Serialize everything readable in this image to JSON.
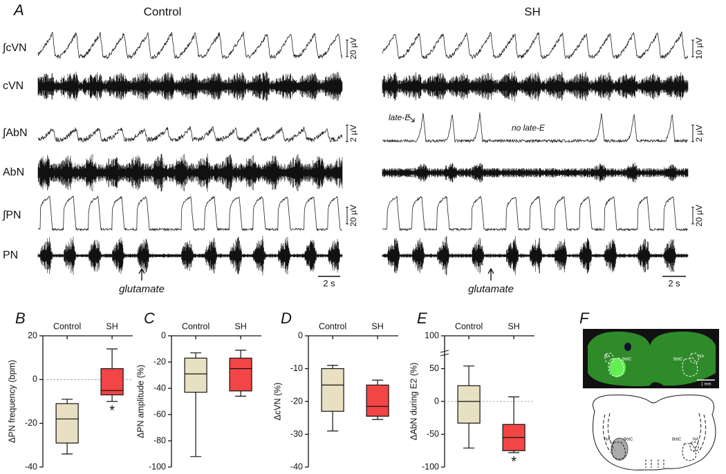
{
  "panel_a": {
    "letter": "A",
    "groups": [
      {
        "title": "Control",
        "traces": [
          {
            "label": "∫cVN",
            "scale": "20 µV"
          },
          {
            "label": "cVN"
          },
          {
            "label": "∫AbN",
            "scale": "2 µV"
          },
          {
            "label": "AbN"
          },
          {
            "label": "∫PN",
            "scale": "20 µV"
          },
          {
            "label": "PN"
          }
        ],
        "time_scale": "2 s",
        "stimulus": "glutamate"
      },
      {
        "title": "SH",
        "traces": [
          {
            "scale": "10 µV"
          },
          {},
          {
            "scale": "2 µV"
          },
          {},
          {
            "scale": "20 µV"
          },
          {}
        ],
        "time_scale": "2 s",
        "stimulus": "glutamate",
        "annotations": [
          "late-E",
          "no late-E"
        ]
      }
    ]
  },
  "chart_data": [
    {
      "type": "box",
      "panel": "B",
      "ylabel": "ΔPN frequency (bpm)",
      "categories": [
        "Control",
        "SH"
      ],
      "colors": [
        "#e8e0c2",
        "#f24545"
      ],
      "ylim": [
        -40,
        20
      ],
      "yticks": [
        -40,
        -20,
        0,
        20
      ],
      "reference_line": 0,
      "boxes": [
        {
          "min": -34,
          "q1": -29,
          "median": -18,
          "q3": -11,
          "max": -9
        },
        {
          "min": -10,
          "q1": -7,
          "median": -5,
          "q3": 5,
          "max": 14
        }
      ],
      "significance": {
        "category": "SH",
        "text": "*"
      }
    },
    {
      "type": "box",
      "panel": "C",
      "ylabel": "ΔPN amplitude (%)",
      "categories": [
        "Control",
        "SH"
      ],
      "colors": [
        "#e8e0c2",
        "#f24545"
      ],
      "ylim": [
        -100,
        0
      ],
      "yticks": [
        -100,
        -80,
        -60,
        -40,
        -20,
        0
      ],
      "boxes": [
        {
          "min": -92,
          "q1": -43,
          "median": -29,
          "q3": -17,
          "max": -13
        },
        {
          "min": -46,
          "q1": -42,
          "median": -25,
          "q3": -17,
          "max": -11
        }
      ]
    },
    {
      "type": "box",
      "panel": "D",
      "ylabel": "ΔcVN (%)",
      "categories": [
        "Control",
        "SH"
      ],
      "colors": [
        "#e8e0c2",
        "#f24545"
      ],
      "ylim": [
        -40,
        0
      ],
      "yticks": [
        -40,
        -30,
        -20,
        -10,
        0
      ],
      "boxes": [
        {
          "min": -29,
          "q1": -23,
          "median": -15,
          "q3": -10,
          "max": -9
        },
        {
          "min": -25.5,
          "q1": -24.5,
          "median": -21.5,
          "q3": -15,
          "max": -13.5
        }
      ]
    },
    {
      "type": "box",
      "panel": "E",
      "ylabel": "ΔAbN during E2 (%)",
      "categories": [
        "Control",
        "SH"
      ],
      "colors": [
        "#e8e0c2",
        "#f24545"
      ],
      "ylim": [
        -100,
        100
      ],
      "yticks": [
        -100,
        -50,
        0,
        50,
        100
      ],
      "reference_line": 0,
      "boxes": [
        {
          "min": -71,
          "q1": -33,
          "median": 0,
          "q3": 24,
          "max": 54
        },
        {
          "min": -78,
          "q1": -75,
          "median": -55,
          "q3": -35,
          "max": 7
        }
      ],
      "significance": {
        "category": "SH",
        "text": "*"
      }
    }
  ],
  "panel_f": {
    "letter": "F",
    "image_labels": [
      "NA",
      "BötC",
      "BötC",
      "NA"
    ],
    "scale": "1 mm",
    "schematic_labels": [
      "NA",
      "BötC",
      "BötC",
      "NA"
    ]
  }
}
